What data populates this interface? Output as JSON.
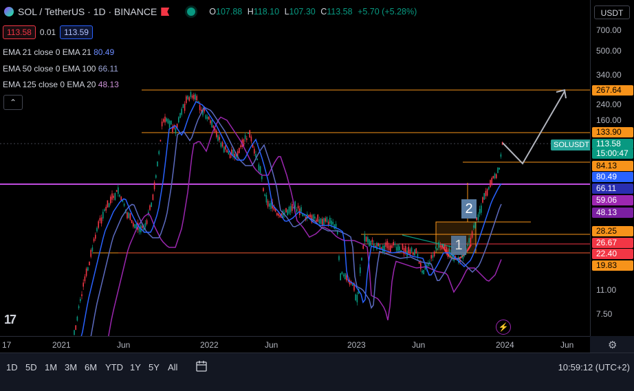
{
  "header": {
    "symbol": "SOL / TetherUS · 1D · BINANCE",
    "ohlc": [
      {
        "k": "O",
        "v": "107.88"
      },
      {
        "k": "H",
        "v": "118.10"
      },
      {
        "k": "L",
        "v": "107.30"
      },
      {
        "k": "C",
        "v": "113.58"
      }
    ],
    "change": "+5.70 (+5.28%)",
    "bid": "113.58",
    "spread": "0.01",
    "ask": "113.59"
  },
  "indicators": [
    {
      "label": "EMA 21 close 0 EMA 21",
      "value": "80.49",
      "color": "#2962ff"
    },
    {
      "label": "EMA 50 close 0 EMA 100",
      "value": "66.11",
      "color": "#5c6bc0"
    },
    {
      "label": "EMA 125 close 0 EMA 20",
      "value": "48.13",
      "color": "#9c27b0"
    }
  ],
  "collapse_glyph": "⌃",
  "currency": "USDT",
  "price_axis": [
    "700.00",
    "500.00",
    "340.00",
    "240.00",
    "160.00",
    "11.00",
    "7.50"
  ],
  "price_tags": [
    {
      "text": "267.64",
      "bg": "#f7931a",
      "fg": "#000"
    },
    {
      "text": "133.90",
      "bg": "#f7931a",
      "fg": "#000"
    },
    {
      "text": "113.58",
      "bg": "#089981",
      "fg": "#fff"
    },
    {
      "text": "15:00:47",
      "bg": "#089981",
      "fg": "#fff"
    },
    {
      "text": "84.13",
      "bg": "#f7931a",
      "fg": "#000"
    },
    {
      "text": "80.49",
      "bg": "#2962ff",
      "fg": "#fff"
    },
    {
      "text": "66.11",
      "bg": "#2a2eb0",
      "fg": "#fff"
    },
    {
      "text": "59.06",
      "bg": "#9c27b0",
      "fg": "#fff"
    },
    {
      "text": "48.13",
      "bg": "#7b1fa2",
      "fg": "#fff"
    },
    {
      "text": "28.25",
      "bg": "#f7931a",
      "fg": "#000"
    },
    {
      "text": "26.67",
      "bg": "#f23645",
      "fg": "#fff"
    },
    {
      "text": "22.40",
      "bg": "#f23645",
      "fg": "#fff"
    },
    {
      "text": "19.83",
      "bg": "#f7931a",
      "fg": "#000"
    }
  ],
  "symbol_badge": "SOLUSDT",
  "annotations": [
    "1",
    "2"
  ],
  "time_axis": [
    "17",
    "2021",
    "Jun",
    "2022",
    "Jun",
    "2023",
    "Jun",
    "2024",
    "Jun"
  ],
  "timeframes": [
    "1D",
    "5D",
    "1M",
    "3M",
    "6M",
    "YTD",
    "1Y",
    "5Y",
    "All"
  ],
  "clock": "10:59:12 (UTC+2)",
  "logo": "17",
  "colors": {
    "up": "#089981",
    "down": "#f23645",
    "level": "#f7931a",
    "ema21": "#2962ff",
    "ema50": "#5c6bc0",
    "ema125": "#9c27b0"
  }
}
